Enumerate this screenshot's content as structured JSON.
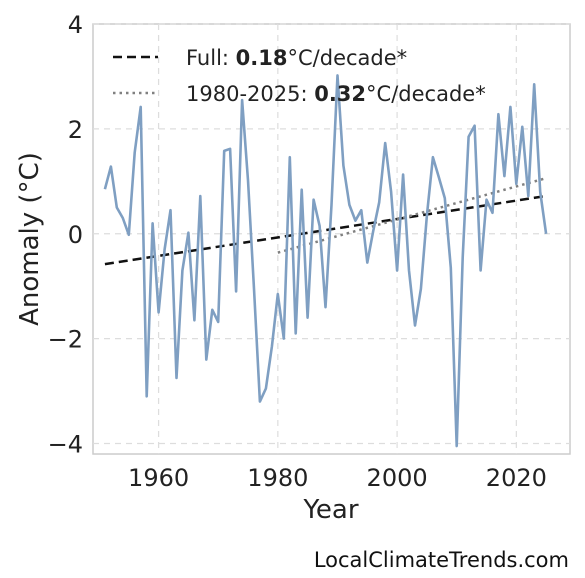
{
  "chart_data": {
    "type": "line",
    "xlabel": "Year",
    "ylabel": "Anomaly (°C)",
    "xlim": [
      1949,
      2029
    ],
    "ylim": [
      -4.2,
      4.0
    ],
    "xticks": [
      1960,
      1980,
      2000,
      2020
    ],
    "yticks": [
      -4,
      -2,
      0,
      2,
      4
    ],
    "ytick_labels": [
      "−4",
      "−2",
      "0",
      "2",
      "4"
    ],
    "grid": true,
    "legend_position": "top-left",
    "legend": [
      {
        "prefix": "Full: ",
        "value": "0.18",
        "suffix": "°C/decade*",
        "style": "dashed",
        "color": "#111111"
      },
      {
        "prefix": "1980-2025: ",
        "value": "0.32",
        "suffix": "°C/decade*",
        "style": "dotted",
        "color": "#808080"
      }
    ],
    "series": [
      {
        "color": "#7f9fc2",
        "x": [
          1951,
          1952,
          1953,
          1954,
          1955,
          1956,
          1957,
          1958,
          1959,
          1960,
          1961,
          1962,
          1963,
          1964,
          1965,
          1966,
          1967,
          1968,
          1969,
          1970,
          1971,
          1972,
          1973,
          1974,
          1975,
          1976,
          1977,
          1978,
          1979,
          1980,
          1981,
          1982,
          1983,
          1984,
          1985,
          1986,
          1987,
          1988,
          1989,
          1990,
          1991,
          1992,
          1993,
          1994,
          1995,
          1996,
          1997,
          1998,
          1999,
          2000,
          2001,
          2002,
          2003,
          2004,
          2005,
          2006,
          2007,
          2008,
          2009,
          2010,
          2011,
          2012,
          2013,
          2014,
          2015,
          2016,
          2017,
          2018,
          2019,
          2020,
          2021,
          2022,
          2023,
          2024,
          2025
        ],
        "values": [
          0.85,
          1.28,
          0.5,
          0.3,
          -0.02,
          1.55,
          2.42,
          -3.1,
          0.2,
          -1.5,
          -0.3,
          0.45,
          -2.75,
          -0.7,
          0.02,
          -1.65,
          0.72,
          -2.4,
          -1.45,
          -1.68,
          1.58,
          1.62,
          -1.1,
          2.55,
          1.02,
          -1.05,
          -3.2,
          -2.95,
          -2.15,
          -1.15,
          -2.0,
          1.46,
          -1.9,
          0.84,
          -1.6,
          0.65,
          0.15,
          -1.4,
          0.55,
          3.02,
          1.3,
          0.55,
          0.25,
          0.45,
          -0.55,
          0.05,
          0.6,
          1.73,
          0.8,
          -0.7,
          1.13,
          -0.7,
          -1.75,
          -1.05,
          0.35,
          1.46,
          1.08,
          0.68,
          -0.65,
          -4.05,
          -0.45,
          1.85,
          2.06,
          -0.7,
          0.65,
          0.4,
          2.28,
          1.1,
          2.42,
          0.95,
          2.04,
          0.72,
          2.85,
          0.8,
          0.0
        ]
      }
    ],
    "trend_full": {
      "x": [
        1951,
        2025
      ],
      "y": [
        -0.58,
        0.72
      ]
    },
    "trend_recent": {
      "x": [
        1980,
        2025
      ],
      "y": [
        -0.36,
        1.06
      ]
    }
  },
  "credit": "LocalClimateTrends.com"
}
